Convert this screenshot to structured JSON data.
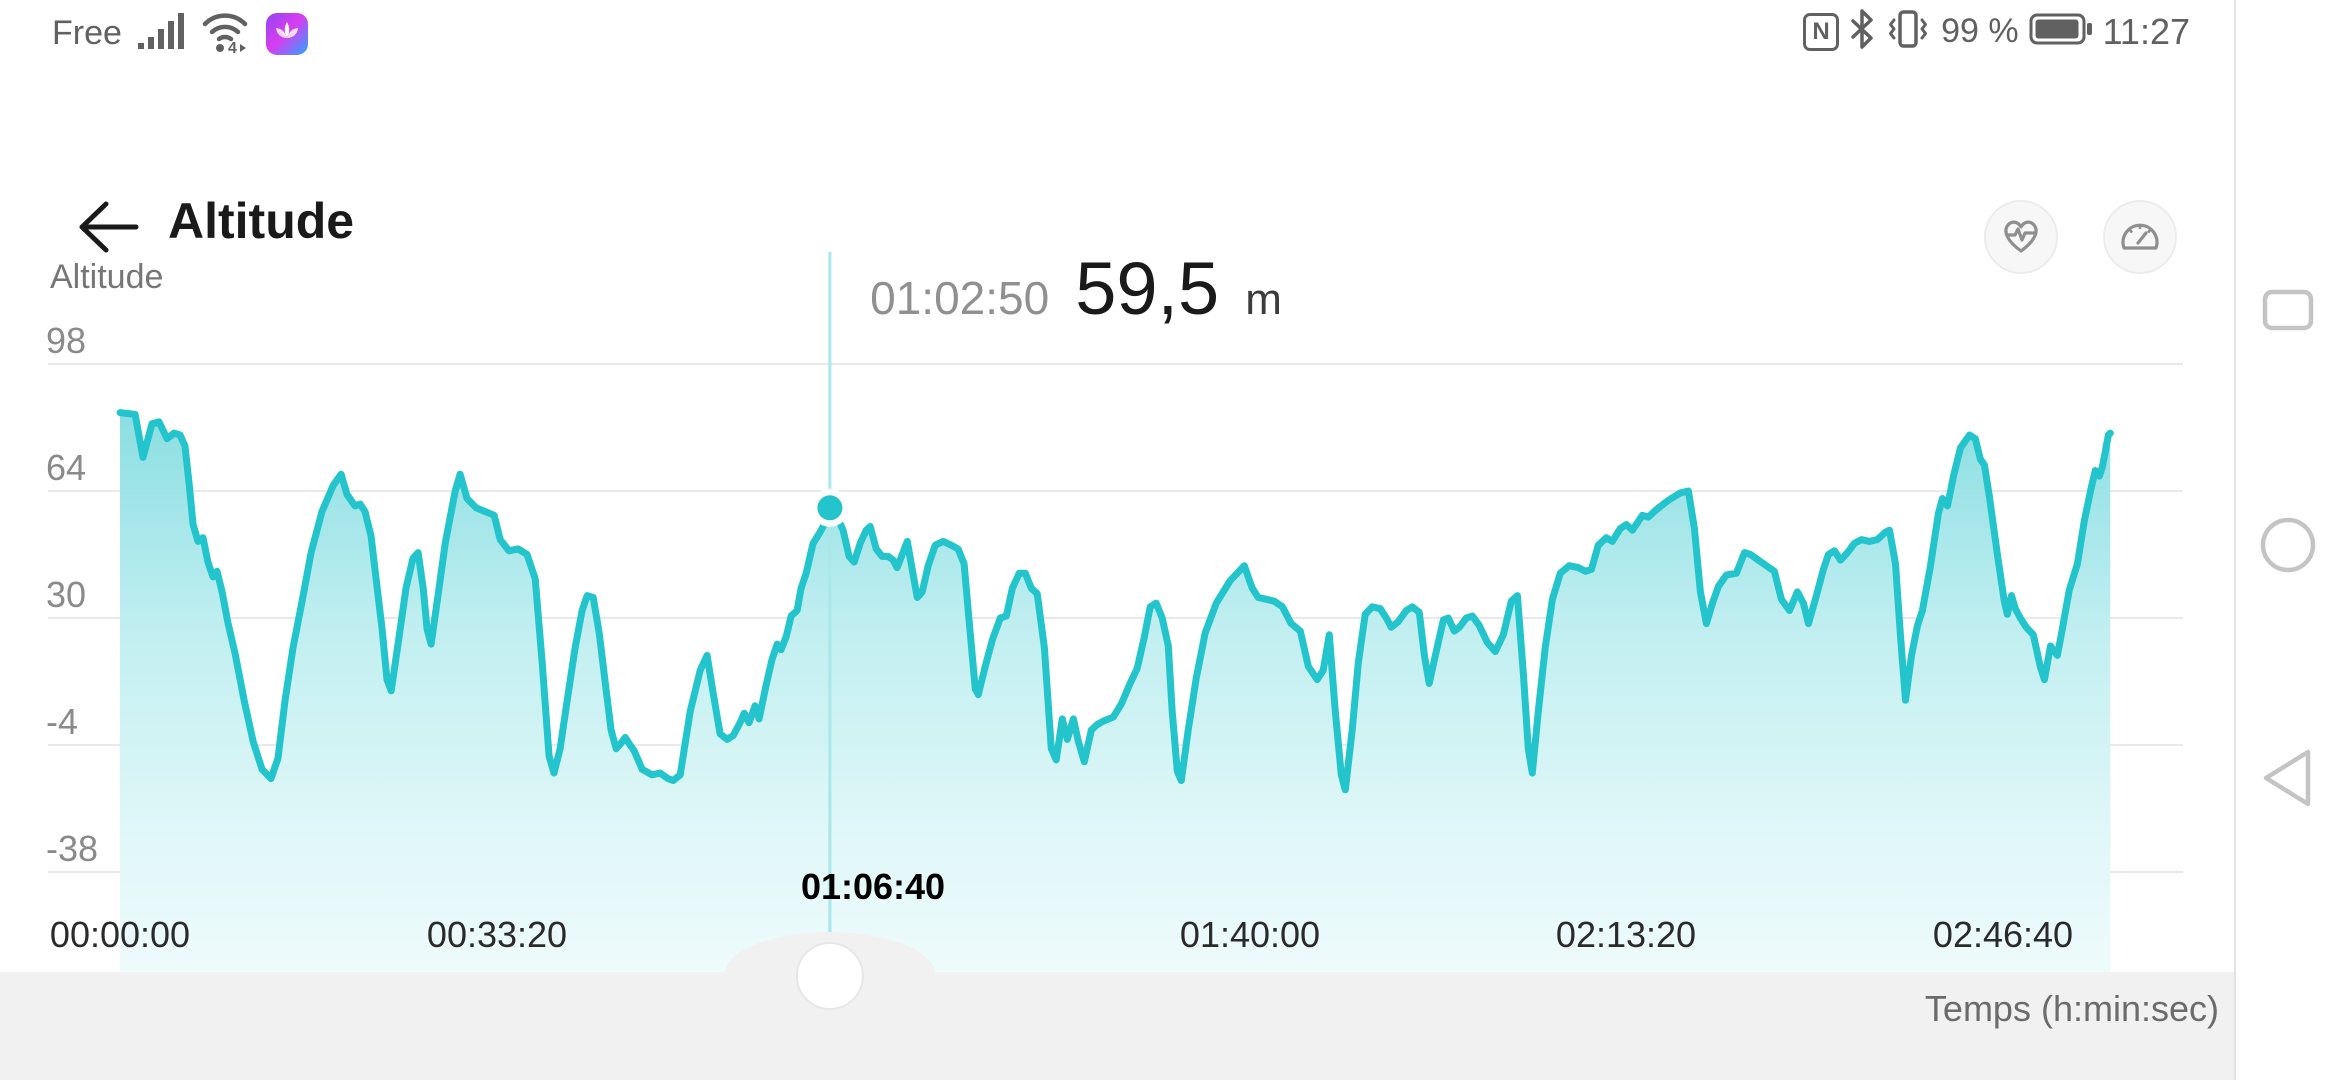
{
  "status_bar": {
    "carrier": "Free",
    "battery_percent": "99 %",
    "time": "11:27",
    "left_icons": [
      "signal-strength-icon",
      "wifi-icon",
      "health-app-icon"
    ],
    "right_icons": [
      "nfc-icon",
      "bluetooth-icon",
      "vibrate-icon",
      "battery-icon"
    ],
    "nfc_letter": "N",
    "wifi_badge": "4"
  },
  "header": {
    "title": "Altitude",
    "back_icon": "arrow-left",
    "action_icons": [
      "heart-rate-icon",
      "gauge-icon"
    ]
  },
  "selection": {
    "time": "01:02:50",
    "value": "59,5",
    "unit": "m",
    "time_seconds": 3770,
    "altitude_m": 59.5
  },
  "chart_data": {
    "type": "area",
    "title": "Altitude",
    "x_axis_label": "Temps (h:min:sec)",
    "y_unit": "m",
    "y_ticks": [
      98,
      64,
      30,
      -4,
      -38
    ],
    "y_tick_labels": [
      "98",
      "64",
      "30",
      "-4",
      "-38"
    ],
    "x_ticks_seconds": [
      0,
      2000,
      4000,
      6000,
      8000,
      10000
    ],
    "x_tick_labels": [
      "00:00:00",
      "00:33:20",
      "01:06:40",
      "01:40:00",
      "02:13:20",
      "02:46:40"
    ],
    "selected_x_tick_index": 2,
    "x_range_seconds": [
      0,
      10570
    ],
    "grid": true,
    "legend": "none",
    "line_color": "#24c4cc",
    "selected_point": {
      "time": "01:02:50",
      "seconds": 3770,
      "altitude_m": 59.5
    },
    "points": [
      [
        0,
        85
      ],
      [
        80,
        84.5
      ],
      [
        122,
        73
      ],
      [
        170,
        82
      ],
      [
        207,
        82.5
      ],
      [
        250,
        78
      ],
      [
        287,
        79.5
      ],
      [
        319,
        79
      ],
      [
        345,
        76
      ],
      [
        367,
        66
      ],
      [
        388,
        55
      ],
      [
        414,
        50.5
      ],
      [
        441,
        51.5
      ],
      [
        467,
        45
      ],
      [
        494,
        41
      ],
      [
        515,
        42.5
      ],
      [
        542,
        37
      ],
      [
        574,
        28.5
      ],
      [
        611,
        20.5
      ],
      [
        659,
        8
      ],
      [
        707,
        -3
      ],
      [
        754,
        -10.5
      ],
      [
        802,
        -13
      ],
      [
        839,
        -7.5
      ],
      [
        877,
        8
      ],
      [
        919,
        22
      ],
      [
        967,
        34.5
      ],
      [
        1015,
        47.5
      ],
      [
        1073,
        58.5
      ],
      [
        1132,
        65.5
      ],
      [
        1174,
        68.5
      ],
      [
        1206,
        63
      ],
      [
        1248,
        60
      ],
      [
        1275,
        60.5
      ],
      [
        1301,
        58.5
      ],
      [
        1333,
        52
      ],
      [
        1360,
        40.5
      ],
      [
        1392,
        27
      ],
      [
        1418,
        13.5
      ],
      [
        1440,
        10.5
      ],
      [
        1482,
        25
      ],
      [
        1519,
        38
      ],
      [
        1556,
        46
      ],
      [
        1583,
        47.5
      ],
      [
        1610,
        38
      ],
      [
        1631,
        27
      ],
      [
        1652,
        23
      ],
      [
        1689,
        36
      ],
      [
        1727,
        50
      ],
      [
        1780,
        64
      ],
      [
        1806,
        68.5
      ],
      [
        1843,
        62
      ],
      [
        1891,
        59.5
      ],
      [
        1939,
        58.5
      ],
      [
        1987,
        57.5
      ],
      [
        2019,
        51
      ],
      [
        2066,
        48
      ],
      [
        2114,
        48.5
      ],
      [
        2162,
        47
      ],
      [
        2205,
        40.5
      ],
      [
        2242,
        18
      ],
      [
        2279,
        -7
      ],
      [
        2305,
        -11.5
      ],
      [
        2337,
        -5
      ],
      [
        2375,
        8
      ],
      [
        2417,
        22
      ],
      [
        2454,
        32
      ],
      [
        2481,
        36
      ],
      [
        2513,
        35.5
      ],
      [
        2545,
        26
      ],
      [
        2576,
        13
      ],
      [
        2608,
        0
      ],
      [
        2635,
        -5
      ],
      [
        2661,
        -3.5
      ],
      [
        2683,
        -2
      ],
      [
        2709,
        -4
      ],
      [
        2730,
        -5.5
      ],
      [
        2773,
        -10.5
      ],
      [
        2826,
        -12
      ],
      [
        2868,
        -11.5
      ],
      [
        2911,
        -13
      ],
      [
        2938,
        -13.5
      ],
      [
        2975,
        -12
      ],
      [
        3028,
        5
      ],
      [
        3081,
        16
      ],
      [
        3118,
        20
      ],
      [
        3150,
        10
      ],
      [
        3187,
        -1
      ],
      [
        3224,
        -2.5
      ],
      [
        3256,
        -1.5
      ],
      [
        3293,
        2
      ],
      [
        3315,
        4.5
      ],
      [
        3341,
        2
      ],
      [
        3373,
        6.5
      ],
      [
        3394,
        3
      ],
      [
        3431,
        12
      ],
      [
        3463,
        19
      ],
      [
        3490,
        23
      ],
      [
        3511,
        21.5
      ],
      [
        3538,
        25
      ],
      [
        3564,
        30.5
      ],
      [
        3596,
        32
      ],
      [
        3617,
        38
      ],
      [
        3644,
        42
      ],
      [
        3681,
        50
      ],
      [
        3718,
        53
      ],
      [
        3750,
        56
      ],
      [
        3770,
        59.5
      ],
      [
        3814,
        56.5
      ],
      [
        3840,
        53.5
      ],
      [
        3872,
        46.5
      ],
      [
        3899,
        45
      ],
      [
        3931,
        50
      ],
      [
        3963,
        53.5
      ],
      [
        3984,
        54.5
      ],
      [
        4016,
        48.5
      ],
      [
        4048,
        46.5
      ],
      [
        4080,
        46.5
      ],
      [
        4106,
        45.5
      ],
      [
        4127,
        43.5
      ],
      [
        4154,
        47
      ],
      [
        4181,
        50.5
      ],
      [
        4207,
        43
      ],
      [
        4234,
        35.5
      ],
      [
        4260,
        37
      ],
      [
        4292,
        44
      ],
      [
        4329,
        49.5
      ],
      [
        4372,
        50.5
      ],
      [
        4414,
        49.5
      ],
      [
        4451,
        48.5
      ],
      [
        4483,
        44.5
      ],
      [
        4515,
        26
      ],
      [
        4542,
        11
      ],
      [
        4558,
        9.5
      ],
      [
        4595,
        17
      ],
      [
        4632,
        24
      ],
      [
        4675,
        30
      ],
      [
        4707,
        30.5
      ],
      [
        4739,
        38
      ],
      [
        4776,
        42
      ],
      [
        4808,
        42
      ],
      [
        4839,
        38
      ],
      [
        4871,
        36.5
      ],
      [
        4909,
        22
      ],
      [
        4946,
        -5
      ],
      [
        4972,
        -8
      ],
      [
        5004,
        3
      ],
      [
        5031,
        -2.5
      ],
      [
        5063,
        3
      ],
      [
        5089,
        -3
      ],
      [
        5121,
        -8.5
      ],
      [
        5158,
        0
      ],
      [
        5190,
        1.5
      ],
      [
        5227,
        2.5
      ],
      [
        5275,
        3.5
      ],
      [
        5318,
        7
      ],
      [
        5360,
        12
      ],
      [
        5402,
        16.5
      ],
      [
        5440,
        25
      ],
      [
        5471,
        33
      ],
      [
        5503,
        34
      ],
      [
        5535,
        30
      ],
      [
        5567,
        22.5
      ],
      [
        5588,
        5
      ],
      [
        5615,
        -11
      ],
      [
        5636,
        -13.5
      ],
      [
        5673,
        0
      ],
      [
        5716,
        14
      ],
      [
        5763,
        26
      ],
      [
        5822,
        34
      ],
      [
        5896,
        40
      ],
      [
        5971,
        44
      ],
      [
        6013,
        38
      ],
      [
        6045,
        35.5
      ],
      [
        6088,
        35
      ],
      [
        6130,
        34.5
      ],
      [
        6173,
        33
      ],
      [
        6220,
        28.5
      ],
      [
        6268,
        26.5
      ],
      [
        6311,
        17
      ],
      [
        6358,
        13.5
      ],
      [
        6390,
        16
      ],
      [
        6422,
        25.5
      ],
      [
        6454,
        5
      ],
      [
        6486,
        -12
      ],
      [
        6507,
        -16
      ],
      [
        6544,
        0
      ],
      [
        6576,
        18
      ],
      [
        6613,
        31
      ],
      [
        6650,
        33
      ],
      [
        6693,
        32.5
      ],
      [
        6725,
        30
      ],
      [
        6751,
        27.5
      ],
      [
        6788,
        29
      ],
      [
        6831,
        32
      ],
      [
        6863,
        33
      ],
      [
        6900,
        31.5
      ],
      [
        6927,
        20
      ],
      [
        6953,
        12.5
      ],
      [
        6990,
        21
      ],
      [
        7028,
        29.5
      ],
      [
        7054,
        30
      ],
      [
        7086,
        26.5
      ],
      [
        7113,
        27.5
      ],
      [
        7150,
        30
      ],
      [
        7182,
        30.5
      ],
      [
        7219,
        28
      ],
      [
        7261,
        23.5
      ],
      [
        7304,
        21
      ],
      [
        7346,
        25.5
      ],
      [
        7389,
        34.5
      ],
      [
        7421,
        36
      ],
      [
        7453,
        15
      ],
      [
        7479,
        -5
      ],
      [
        7500,
        -11.5
      ],
      [
        7532,
        5
      ],
      [
        7569,
        22
      ],
      [
        7607,
        35
      ],
      [
        7649,
        42
      ],
      [
        7697,
        44
      ],
      [
        7745,
        43.5
      ],
      [
        7782,
        42.5
      ],
      [
        7814,
        43
      ],
      [
        7851,
        49.5
      ],
      [
        7893,
        51.5
      ],
      [
        7925,
        50.5
      ],
      [
        7968,
        54
      ],
      [
        8000,
        55
      ],
      [
        8032,
        53.5
      ],
      [
        8085,
        57.5
      ],
      [
        8117,
        57
      ],
      [
        8159,
        59
      ],
      [
        8223,
        61.5
      ],
      [
        8287,
        63.5
      ],
      [
        8329,
        64
      ],
      [
        8361,
        54
      ],
      [
        8393,
        37
      ],
      [
        8425,
        28.5
      ],
      [
        8457,
        34
      ],
      [
        8489,
        38.5
      ],
      [
        8531,
        41.5
      ],
      [
        8584,
        42
      ],
      [
        8627,
        47.5
      ],
      [
        8659,
        47
      ],
      [
        8701,
        45.5
      ],
      [
        8744,
        44
      ],
      [
        8786,
        42.5
      ],
      [
        8823,
        35
      ],
      [
        8866,
        32
      ],
      [
        8908,
        37
      ],
      [
        8940,
        34
      ],
      [
        8967,
        28.5
      ],
      [
        9009,
        36
      ],
      [
        9046,
        43
      ],
      [
        9073,
        47
      ],
      [
        9105,
        48
      ],
      [
        9137,
        45.5
      ],
      [
        9174,
        47.5
      ],
      [
        9211,
        50
      ],
      [
        9248,
        51
      ],
      [
        9291,
        50.5
      ],
      [
        9333,
        51
      ],
      [
        9376,
        53
      ],
      [
        9397,
        53.5
      ],
      [
        9429,
        44.5
      ],
      [
        9455,
        25.5
      ],
      [
        9482,
        8
      ],
      [
        9514,
        20
      ],
      [
        9546,
        28
      ],
      [
        9572,
        32
      ],
      [
        9615,
        44
      ],
      [
        9657,
        58
      ],
      [
        9678,
        62
      ],
      [
        9705,
        60
      ],
      [
        9737,
        68
      ],
      [
        9774,
        75.5
      ],
      [
        9822,
        79
      ],
      [
        9853,
        78
      ],
      [
        9880,
        72.5
      ],
      [
        9901,
        71
      ],
      [
        9928,
        62.5
      ],
      [
        9970,
        47
      ],
      [
        10007,
        34.5
      ],
      [
        10023,
        31
      ],
      [
        10045,
        36
      ],
      [
        10066,
        32.5
      ],
      [
        10092,
        30
      ],
      [
        10124,
        27.5
      ],
      [
        10161,
        25.5
      ],
      [
        10198,
        17
      ],
      [
        10220,
        13.5
      ],
      [
        10252,
        22.5
      ],
      [
        10289,
        20
      ],
      [
        10315,
        27
      ],
      [
        10352,
        37.5
      ],
      [
        10395,
        44.5
      ],
      [
        10432,
        56
      ],
      [
        10469,
        65
      ],
      [
        10490,
        69.5
      ],
      [
        10512,
        68
      ],
      [
        10528,
        70.5
      ],
      [
        10560,
        79
      ],
      [
        10570,
        79.5
      ]
    ]
  },
  "bottom_bar": {
    "axis_label": "Temps (h:min:sec)"
  },
  "nav_bar": {
    "buttons": [
      "recents",
      "home",
      "back"
    ]
  }
}
